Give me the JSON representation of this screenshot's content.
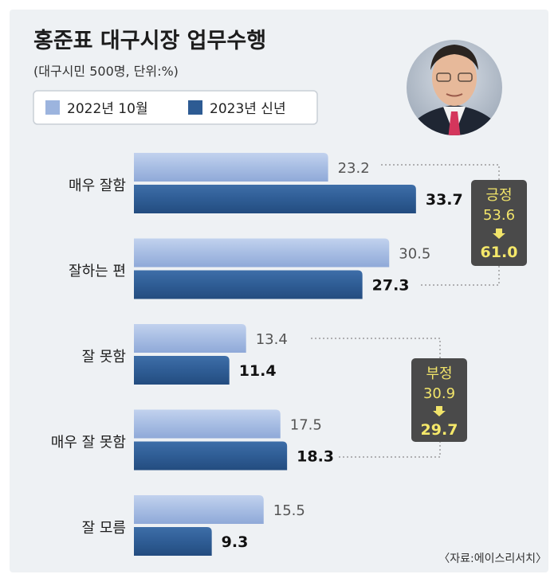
{
  "chart_data": {
    "type": "bar",
    "orientation": "horizontal",
    "title": "홍준표 대구시장 업무수행",
    "subtitle": "(대구시민 500명, 단위:%)",
    "categories": [
      "매우 잘함",
      "잘하는 편",
      "잘 못함",
      "매우 잘 못함",
      "잘 모름"
    ],
    "series": [
      {
        "name": "2022년 10월",
        "values": [
          23.2,
          30.5,
          13.4,
          17.5,
          15.5
        ],
        "color": "#9cb4de"
      },
      {
        "name": "2023년 신년",
        "values": [
          33.7,
          27.3,
          11.4,
          18.3,
          9.3
        ],
        "color": "#2d5b93"
      }
    ],
    "value_labels": {
      "series1": [
        "23.2",
        "30.5",
        "13.4",
        "17.5",
        "15.5"
      ],
      "series2": [
        "33.7",
        "27.3",
        "11.4",
        "18.3",
        "9.3"
      ]
    },
    "summary_boxes": [
      {
        "label": "긍정",
        "from": "53.6",
        "to": "61.0"
      },
      {
        "label": "부정",
        "from": "30.9",
        "to": "29.7"
      }
    ],
    "source": "〈자료:에이스리서치〉",
    "legend_placement": "top-left",
    "grid": false
  },
  "colors": {
    "background": "#eef1f4",
    "light_bar": "#9cb4de",
    "dark_bar": "#2d5b93",
    "summary_box": "#4a4a4a",
    "summary_text": "#f1e46a"
  }
}
